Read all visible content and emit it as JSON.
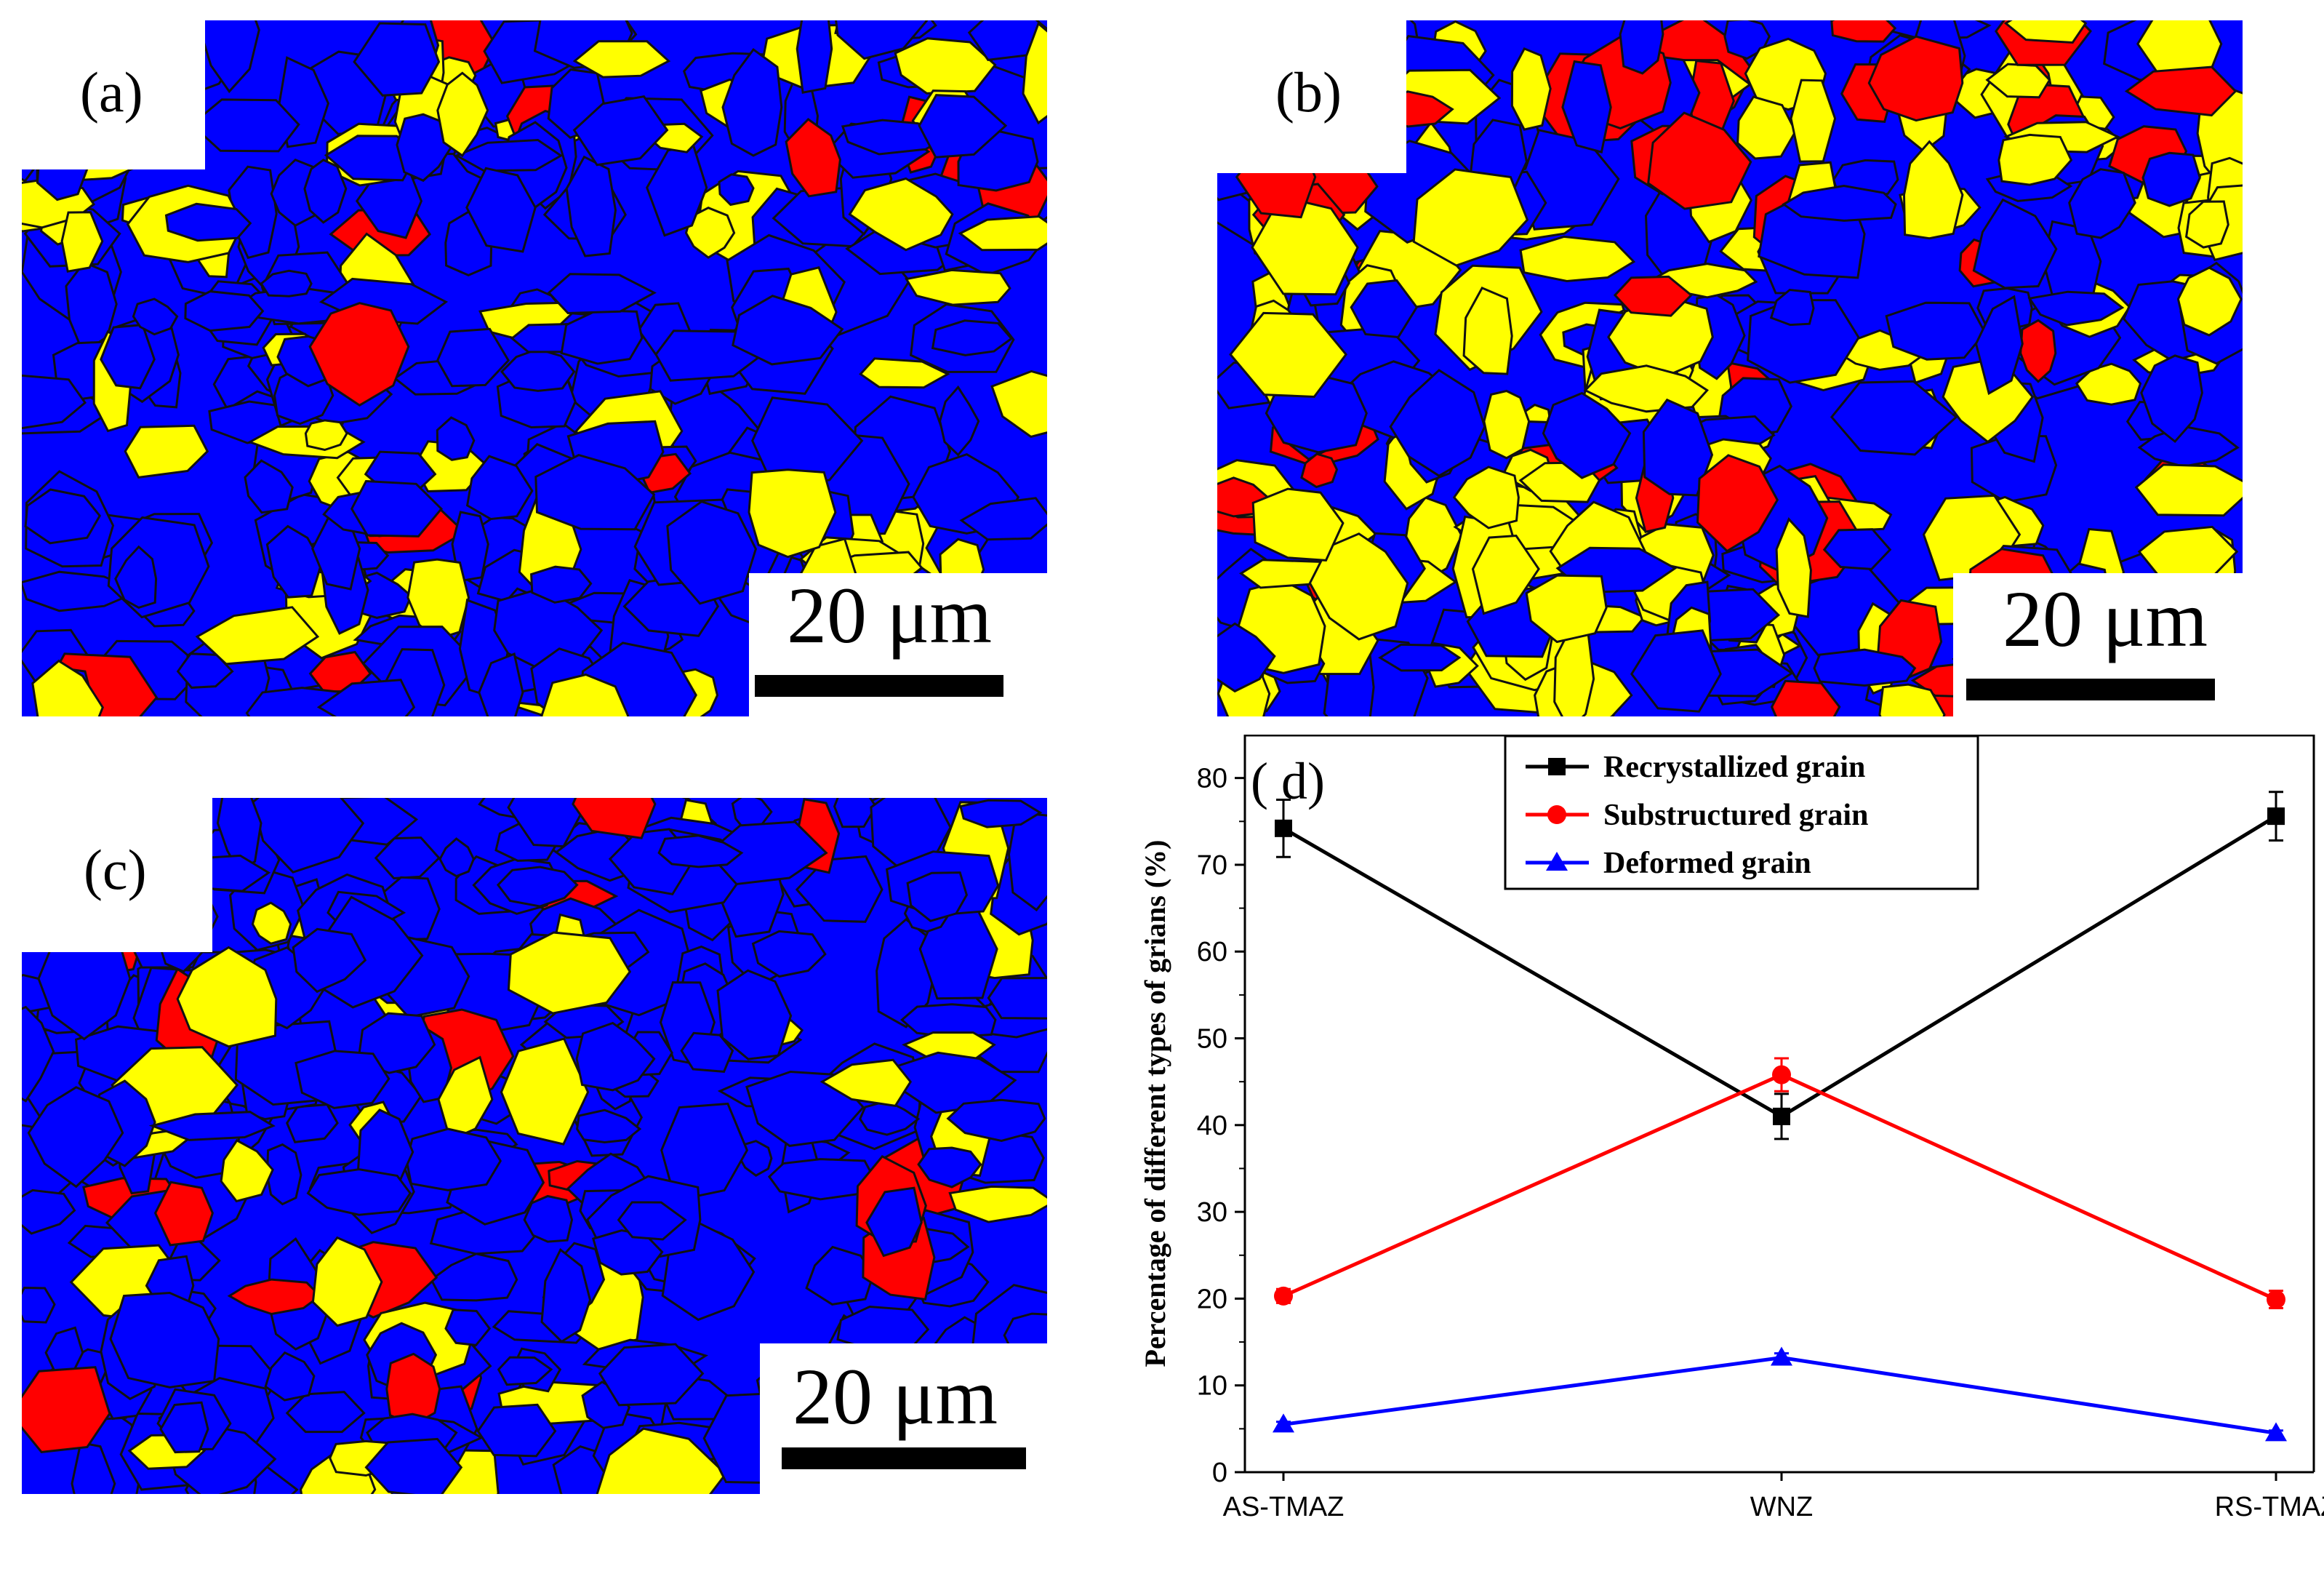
{
  "figure": {
    "panels": [
      {
        "id": "a",
        "label": "(a)",
        "scale_bar": "20 μm"
      },
      {
        "id": "b",
        "label": "(b)",
        "scale_bar": "20 μm"
      },
      {
        "id": "c",
        "label": "(c)",
        "scale_bar": "20 μm"
      }
    ],
    "map_colors": {
      "recrystallized": "#0000ff",
      "substructured": "#ffff00",
      "deformed": "#ff0000",
      "boundary": "#111111"
    }
  },
  "chart_data": {
    "type": "line",
    "panel_label": "( d)",
    "categories": [
      "AS-TMAZ",
      "WNZ",
      "RS-TMAZ"
    ],
    "ylabel": "Percentage of different types of grians (%)",
    "xlabel": "",
    "ylim": [
      0,
      85
    ],
    "yticks": [
      0,
      10,
      20,
      30,
      40,
      50,
      60,
      70,
      80
    ],
    "grid": false,
    "legend_position": "top-right",
    "series": [
      {
        "name": "Recrystallized grain",
        "color": "#000000",
        "marker": "square",
        "values": [
          74.2,
          41.0,
          75.6
        ],
        "errors": [
          3.3,
          2.6,
          2.8
        ]
      },
      {
        "name": "Substructured grain",
        "color": "#ff0000",
        "marker": "circle",
        "values": [
          20.3,
          45.8,
          19.9
        ],
        "errors": [
          0.8,
          1.9,
          1.0
        ]
      },
      {
        "name": "Deformed grain",
        "color": "#0000ff",
        "marker": "triangle",
        "values": [
          5.5,
          13.2,
          4.5
        ],
        "errors": [
          0.3,
          0.5,
          0.3
        ]
      }
    ]
  }
}
